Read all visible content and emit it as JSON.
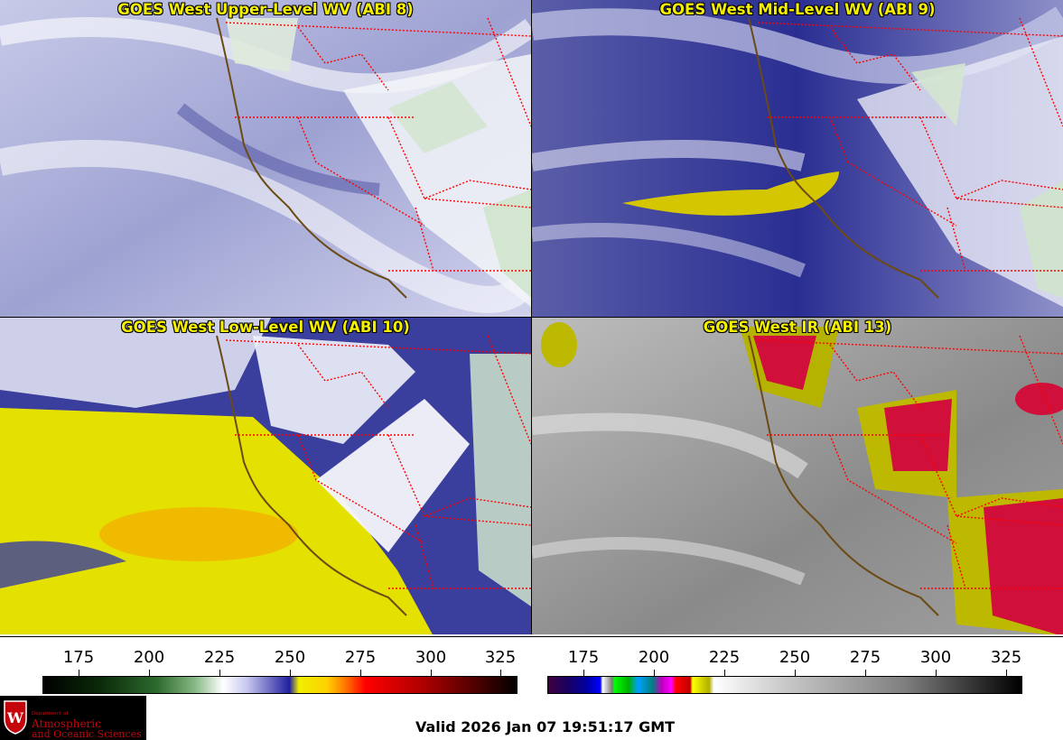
{
  "panels": [
    {
      "title": "GOES West Upper-Level WV (ABI 8)",
      "band": "ABI 8"
    },
    {
      "title": "GOES West Mid-Level WV (ABI 9)",
      "band": "ABI 9"
    },
    {
      "title": "GOES West Low-Level WV (ABI 10)",
      "band": "ABI 10"
    },
    {
      "title": "GOES West IR (ABI 13)",
      "band": "ABI 13"
    }
  ],
  "colorbars": {
    "left": {
      "ticks": [
        "175",
        "200",
        "225",
        "250",
        "275",
        "300",
        "325"
      ],
      "applies_to": "water vapor panels"
    },
    "right": {
      "ticks": [
        "175",
        "200",
        "225",
        "250",
        "275",
        "300",
        "325"
      ],
      "applies_to": "IR panel"
    }
  },
  "logo": {
    "line1": "Department of",
    "line2": "Atmospheric",
    "line3": "and Oceanic Sciences",
    "shield_letter": "W"
  },
  "footer": {
    "valid_time": "Valid 2026 Jan 07 19:51:17 GMT"
  },
  "colors": {
    "title_text": "#f5f000",
    "state_borders": "#ff0000",
    "coastline": "#6b4a14",
    "logo_red": "#c5050c"
  }
}
